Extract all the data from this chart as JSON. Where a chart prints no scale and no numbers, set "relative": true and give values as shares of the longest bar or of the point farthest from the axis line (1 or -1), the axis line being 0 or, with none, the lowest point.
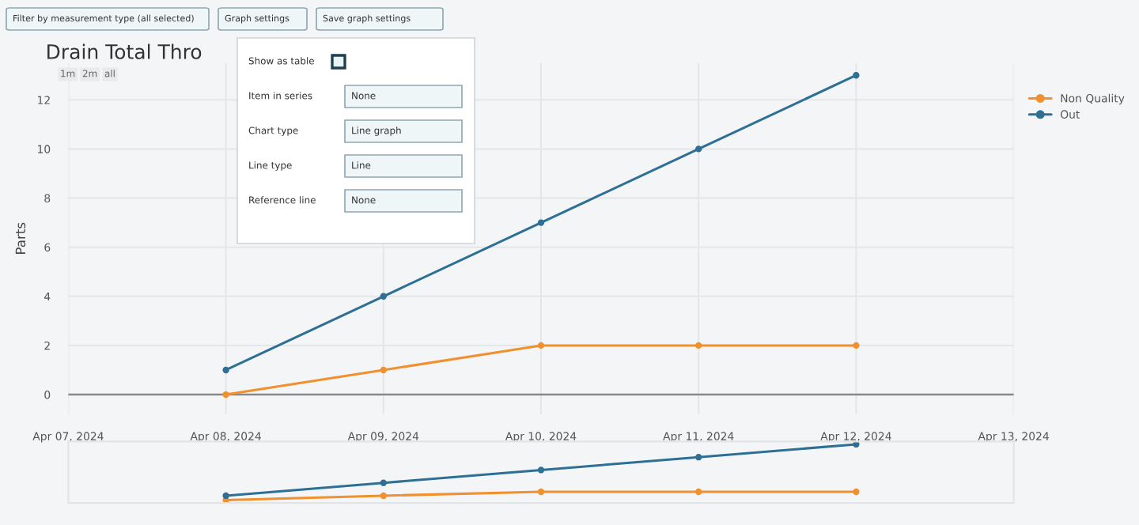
{
  "chart_data": [
    {
      "type": "line",
      "title": "Drain Total Thro",
      "ylabel": "Parts",
      "x": [
        "2024-04-08",
        "2024-04-09",
        "2024-04-10",
        "2024-04-11",
        "2024-04-12"
      ],
      "series": [
        {
          "name": "Non Quality",
          "color": "#f0902e",
          "values": [
            0,
            1,
            2,
            2,
            2
          ]
        },
        {
          "name": "Out",
          "color": "#2e6f95",
          "values": [
            1,
            4,
            7,
            10,
            13
          ]
        }
      ],
      "xlim": [
        "2024-04-07",
        "2024-04-13"
      ],
      "xticks": [
        {
          "value": "2024-04-07",
          "label": "Apr 07, 2024"
        },
        {
          "value": "2024-04-08",
          "label": "Apr 08, 2024"
        },
        {
          "value": "2024-04-09",
          "label": "Apr 09, 2024"
        },
        {
          "value": "2024-04-10",
          "label": "Apr 10, 2024"
        },
        {
          "value": "2024-04-11",
          "label": "Apr 11, 2024"
        },
        {
          "value": "2024-04-12",
          "label": "Apr 12, 2024"
        },
        {
          "value": "2024-04-13",
          "label": "Apr 13, 2024"
        }
      ],
      "ylim": [
        -0.8,
        13.5
      ],
      "yticks": [
        0,
        2,
        4,
        6,
        8,
        10,
        12
      ],
      "ref_lines": [
        {
          "axis": "y",
          "value": 0,
          "color": "#888888"
        }
      ],
      "grid": true,
      "legend": "top right",
      "marker": "circle",
      "line_style": "solid",
      "annotations": [
        "Filter by measurement type (all selected)",
        "Graph settings",
        "Save graph settings",
        "1m",
        "2m",
        "all",
        "Show as table",
        "Item in series",
        "None",
        "Chart type",
        "Line graph",
        "Line type",
        "Line",
        "Reference line",
        "None"
      ]
    },
    {
      "type": "line",
      "relative": true,
      "x": [
        "2024-04-08",
        "2024-04-09",
        "2024-04-10",
        "2024-04-11",
        "2024-04-12"
      ],
      "xlim": [
        "2024-04-07",
        "2024-04-13"
      ],
      "series": [
        {
          "color": "#f0902e",
          "values": [
            0,
            0.08,
            0.15,
            0.15,
            0.15
          ]
        },
        {
          "color": "#2e6f95",
          "values": [
            0.08,
            0.31,
            0.54,
            0.77,
            1
          ]
        }
      ],
      "marker": "circle"
    }
  ]
}
